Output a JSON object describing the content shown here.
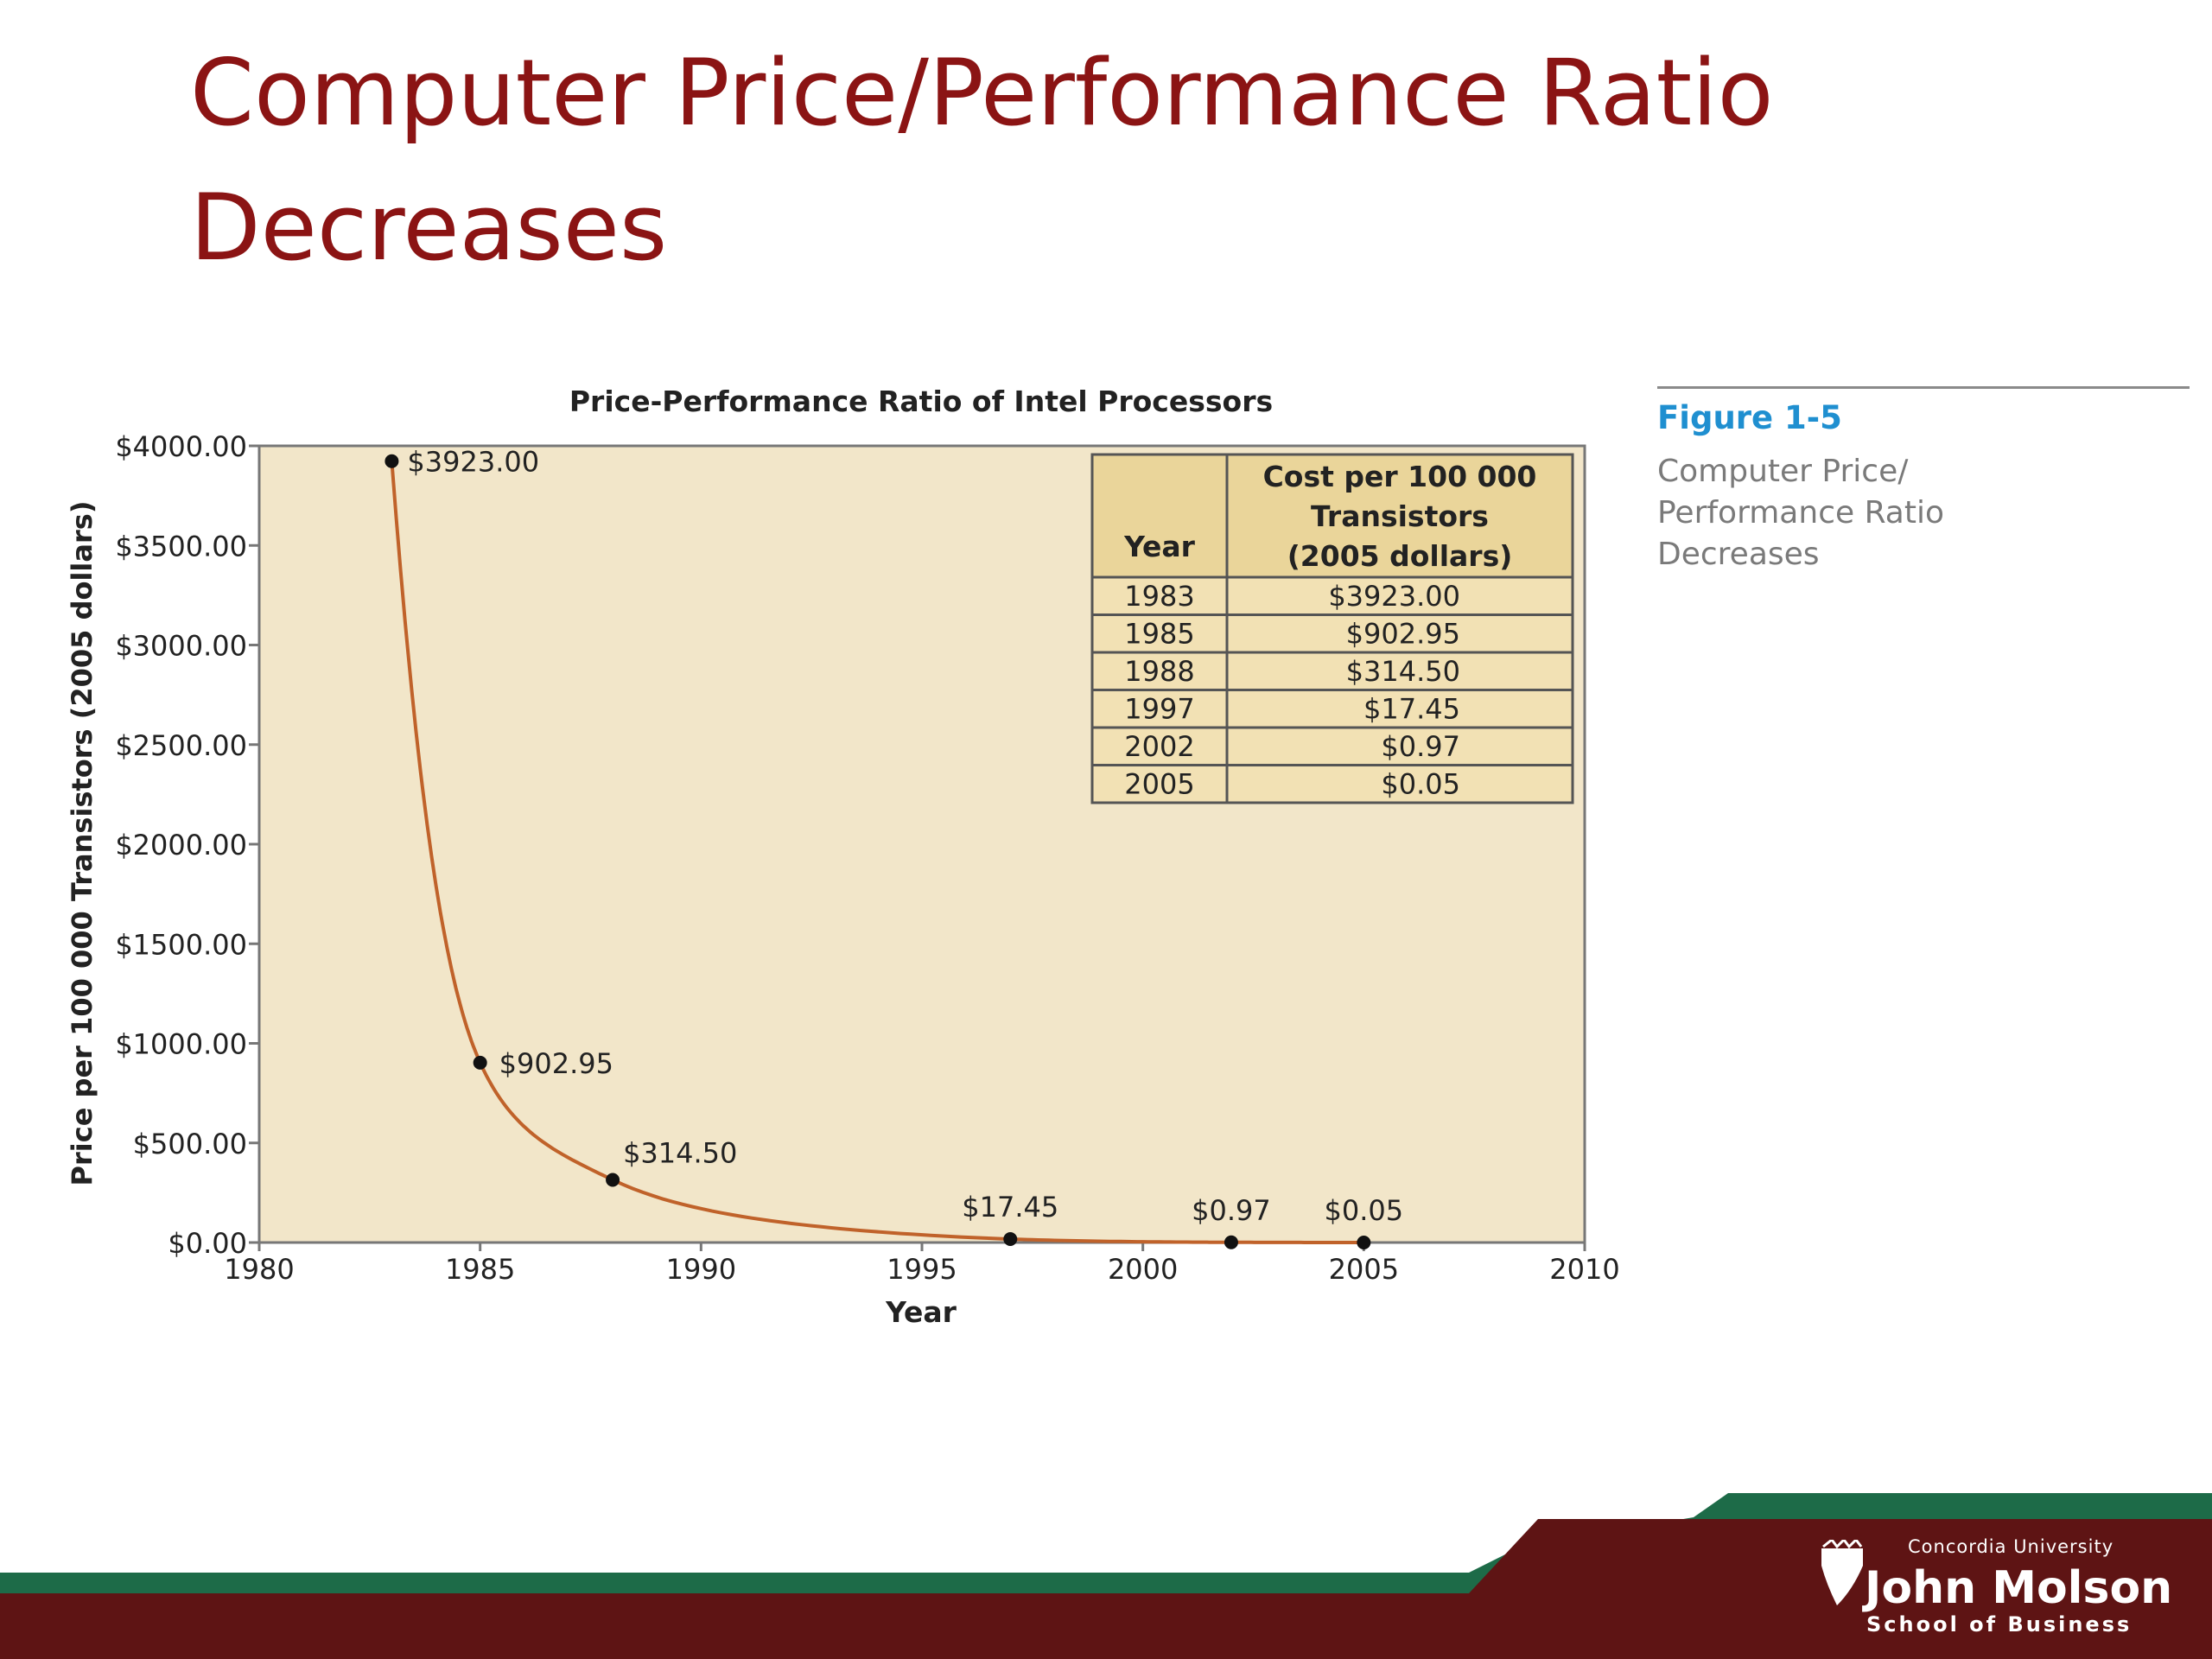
{
  "slide": {
    "title_line1": "Computer Price/Performance Ratio",
    "title_line2": "Decreases"
  },
  "figure": {
    "number": "Figure 1-5",
    "caption_line1": "Computer Price/",
    "caption_line2": "Performance Ratio",
    "caption_line3": "Decreases"
  },
  "logo": {
    "university": "Concordia University",
    "name": "John Molson",
    "school": "School of Business"
  },
  "colors": {
    "title": "#8b1414",
    "plot_background": "#f2e6c9",
    "curve": "#c0622a",
    "table_header": "#ead59a",
    "table_body": "#f2e1b4",
    "figure_number": "#1f8fd0",
    "footer_maroon": "#5e1414",
    "footer_green": "#1d6b48"
  },
  "chart_data": {
    "type": "line",
    "title": "Price-Performance Ratio of Intel Processors",
    "xlabel": "Year",
    "ylabel": "Price per 100 000 Transistors (2005 dollars)",
    "xlim": [
      1980,
      2010
    ],
    "ylim": [
      0,
      4000
    ],
    "x_ticks": [
      1980,
      1985,
      1990,
      1995,
      2000,
      2005,
      2010
    ],
    "y_ticks": [
      0,
      500,
      1000,
      1500,
      2000,
      2500,
      3000,
      3500,
      4000
    ],
    "y_tick_labels": [
      "$0.00",
      "$500.00",
      "$1000.00",
      "$1500.00",
      "$2000.00",
      "$2500.00",
      "$3000.00",
      "$3500.00",
      "$4000.00"
    ],
    "grid": false,
    "x": [
      1983,
      1985,
      1988,
      1997,
      2002,
      2005
    ],
    "values": [
      3923.0,
      902.95,
      314.5,
      17.45,
      0.97,
      0.05
    ],
    "point_labels": [
      "$3923.00",
      "$902.95",
      "$314.50",
      "$17.45",
      "$0.97",
      "$0.05"
    ],
    "table": {
      "headers": [
        "Year",
        "Cost per 100 000",
        "Transistors",
        "(2005 dollars)"
      ],
      "rows": [
        [
          "1983",
          "$3923.00"
        ],
        [
          "1985",
          "$902.95"
        ],
        [
          "1988",
          "$314.50"
        ],
        [
          "1997",
          "$17.45"
        ],
        [
          "2002",
          "$0.97"
        ],
        [
          "2005",
          "$0.05"
        ]
      ]
    }
  }
}
